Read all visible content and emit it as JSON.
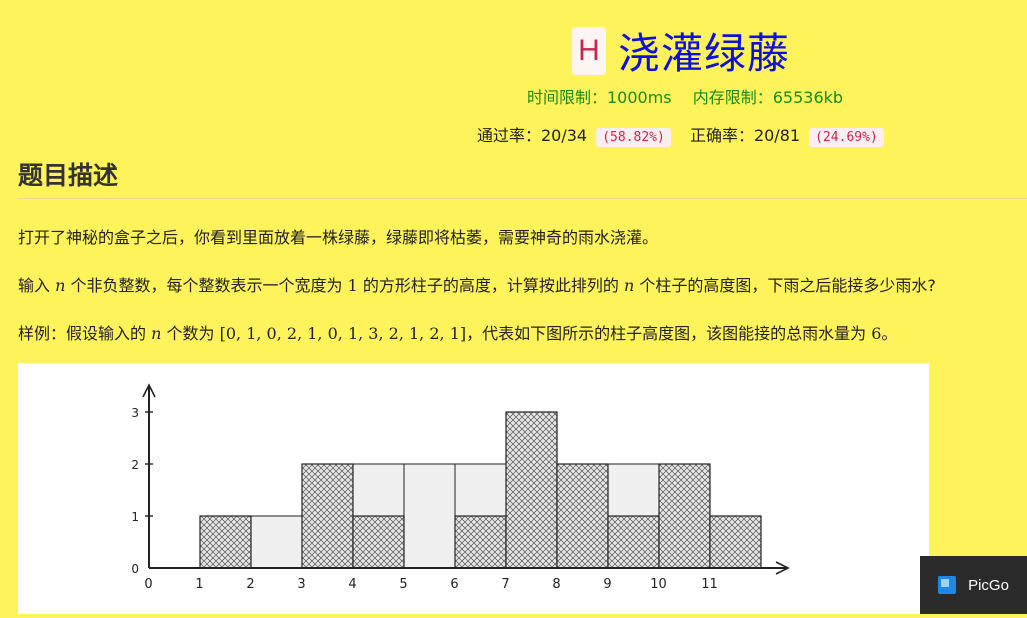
{
  "problem": {
    "level": "H",
    "title": "浇灌绿藤",
    "time_limit": "时间限制：1000ms",
    "memory_limit": "内存限制：65536kb",
    "pass_label": "通过率：20/34",
    "pass_pct": "(58.82%)",
    "accuracy_label": "正确率：20/81",
    "accuracy_pct": "(24.69%)"
  },
  "section": {
    "title": "题目描述"
  },
  "description": {
    "p1": "打开了神秘的盒子之后，你看到里面放着一株绿藤，绿藤即将枯萎，需要神奇的雨水浇灌。",
    "p2_a": "输入 ",
    "p2_n1": "n",
    "p2_b": " 个非负整数，每个整数表示一个宽度为 ",
    "p2_one": "1",
    "p2_c": " 的方形柱子的高度，计算按此排列的 ",
    "p2_n2": "n",
    "p2_d": " 个柱子的高度图，下雨之后能接多少雨水?",
    "p3_a": "样例：假设输入的 ",
    "p3_n": "n",
    "p3_b": " 个数为 ",
    "p3_arr": "[0, 1, 0, 2, 1, 0, 1, 3, 2, 1, 2, 1]",
    "p3_c": "，代表如下图所示的柱子高度图，该图能接的总雨水量为 ",
    "p3_six": "6",
    "p3_d": "。"
  },
  "chart_data": {
    "type": "bar",
    "categories": [
      "0",
      "1",
      "2",
      "3",
      "4",
      "5",
      "6",
      "7",
      "8",
      "9",
      "10",
      "11"
    ],
    "values": [
      0,
      1,
      0,
      2,
      1,
      0,
      1,
      3,
      2,
      1,
      2,
      1
    ],
    "water": [
      0,
      0,
      1,
      0,
      1,
      2,
      1,
      0,
      0,
      1,
      0,
      0
    ],
    "yticks": [
      "0",
      "1",
      "2",
      "3"
    ],
    "ylim": [
      0,
      3
    ],
    "title": "",
    "xlabel": "",
    "ylabel": ""
  },
  "taskbar": {
    "app_label": "PicGo",
    "icon": "picgo-icon"
  }
}
